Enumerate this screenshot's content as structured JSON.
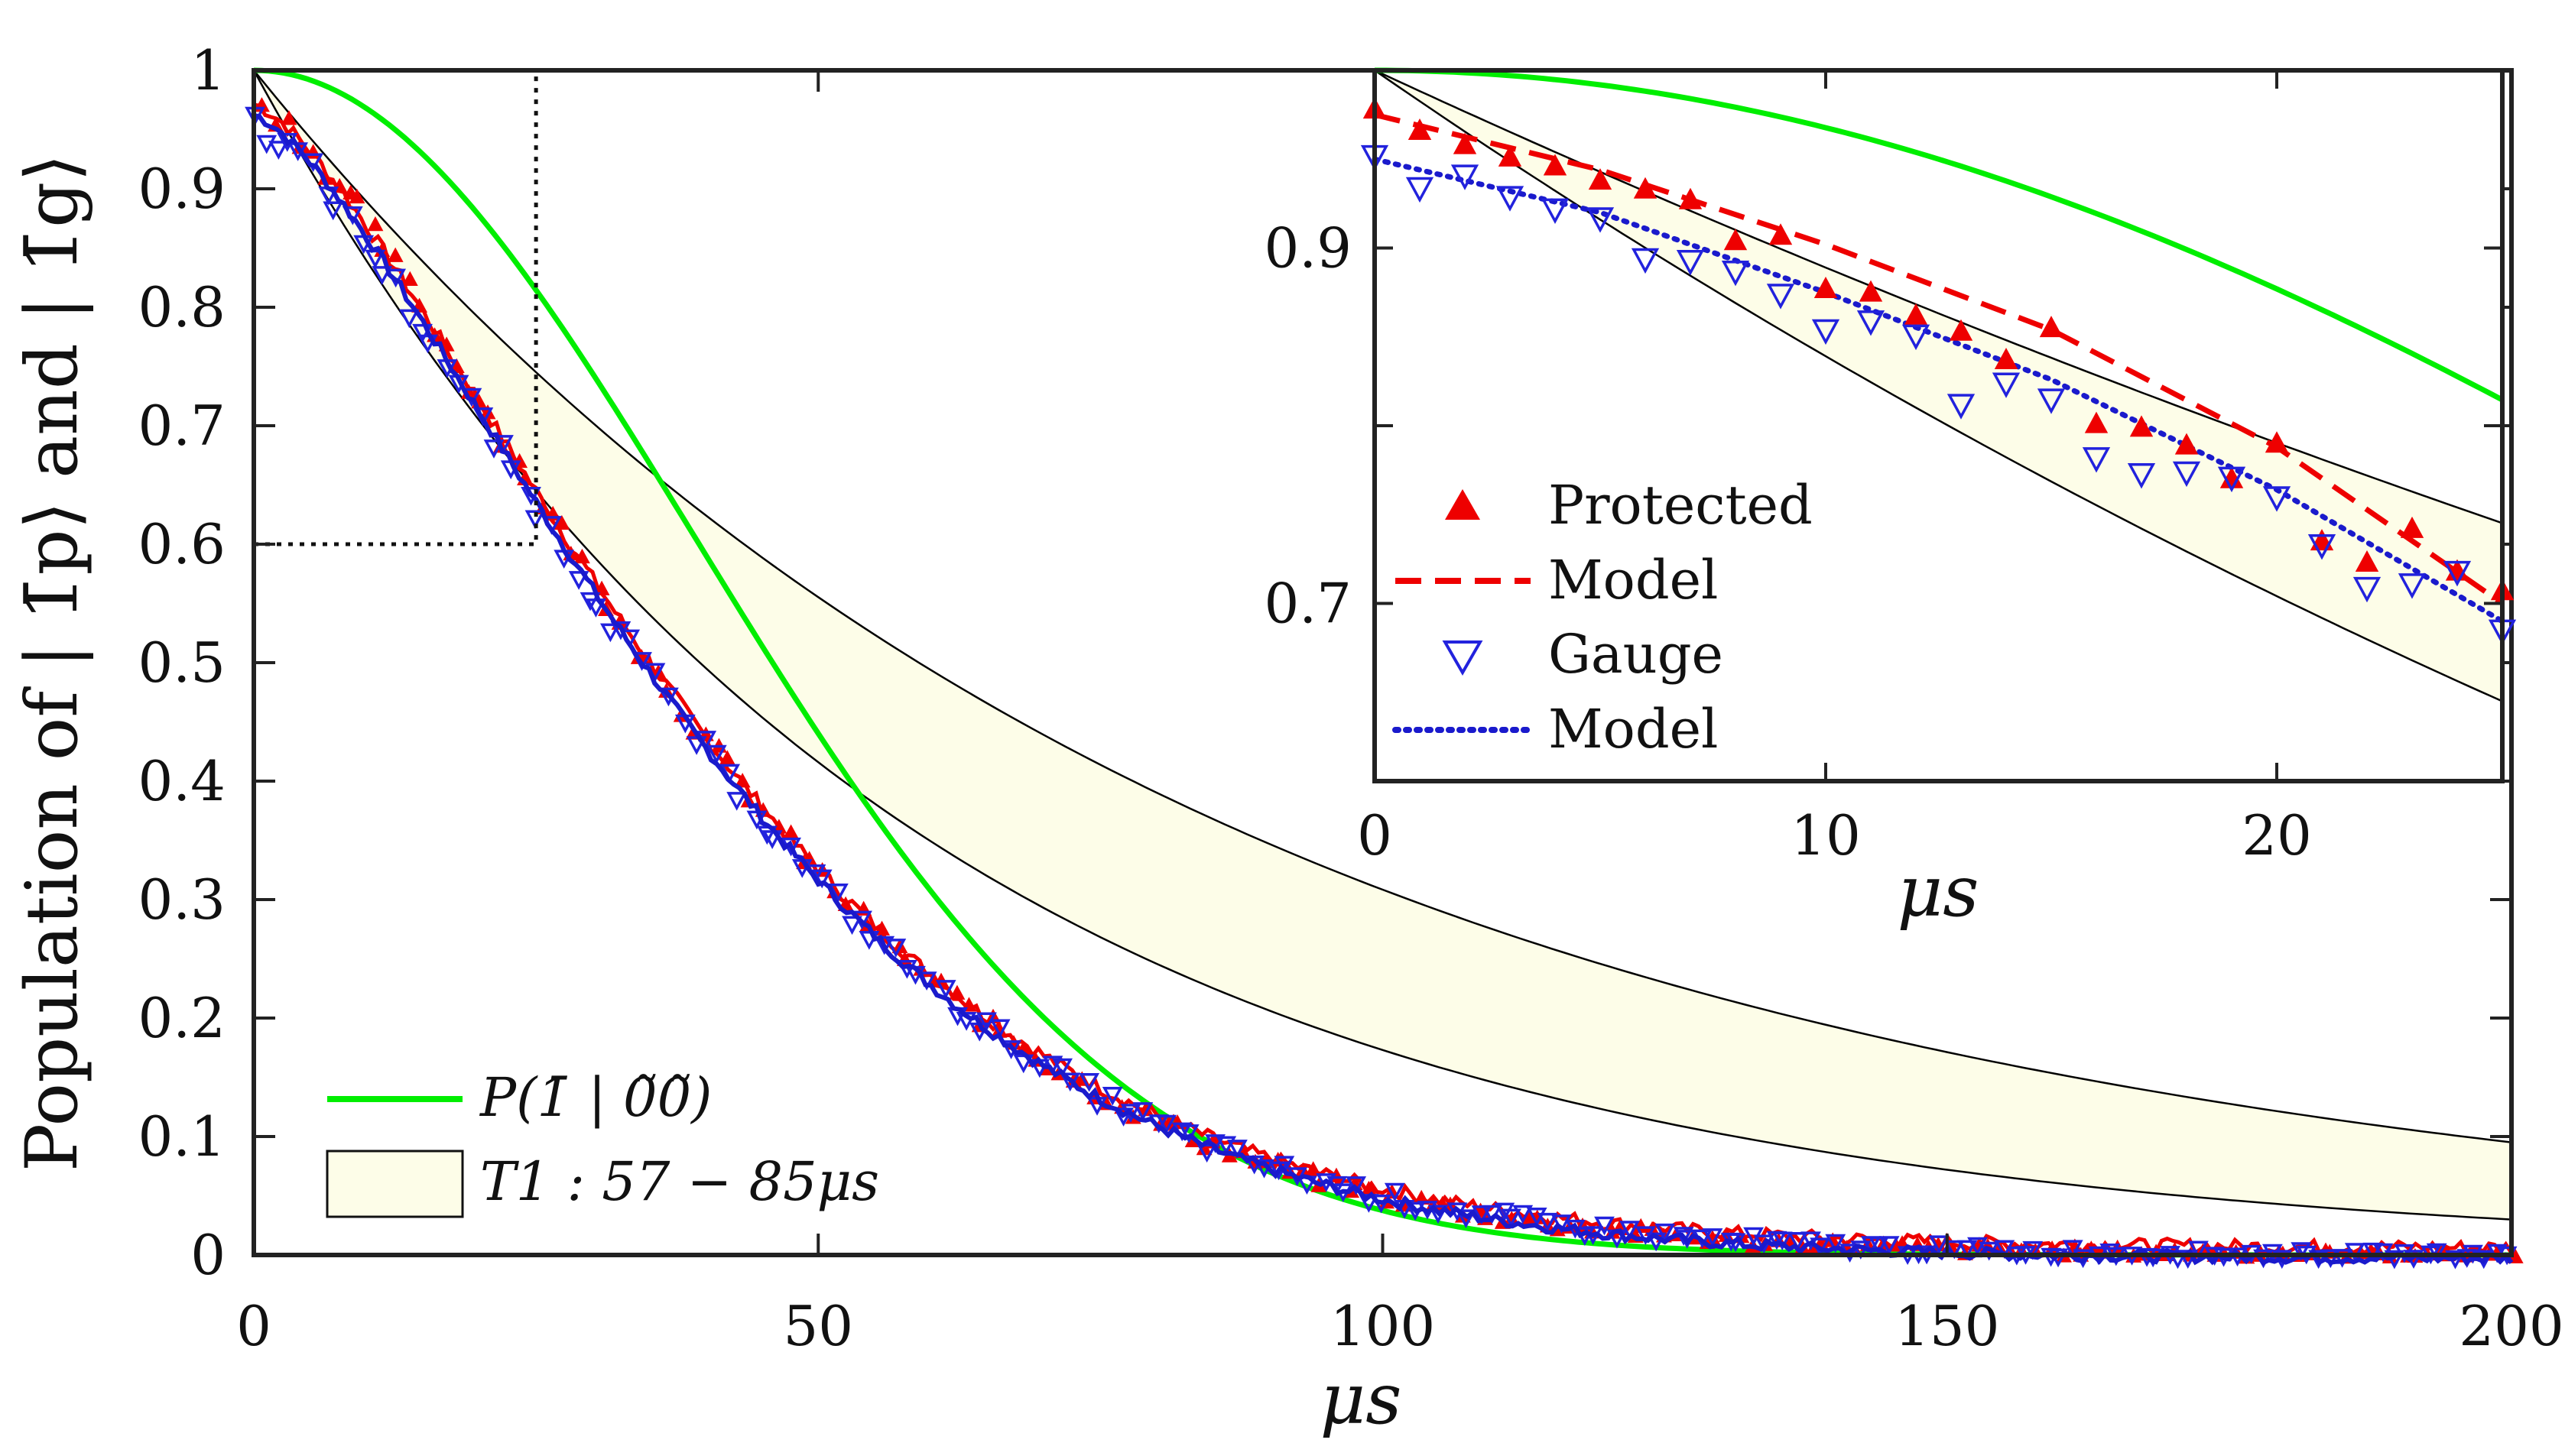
{
  "chart_data": [
    {
      "type": "line",
      "id": "main",
      "ylabel": "Population of | 1̄p⟩ and | 1̄g⟩",
      "xlabel": "μs",
      "xlim": [
        0,
        200
      ],
      "ylim": [
        0,
        1
      ],
      "xticks": [
        0,
        50,
        100,
        150,
        200
      ],
      "xtick_labels": [
        "0",
        "50",
        "100",
        "150",
        "200"
      ],
      "yticks": [
        0,
        0.1,
        0.2,
        0.3,
        0.4,
        0.5,
        0.6,
        0.7,
        0.8,
        0.9,
        1
      ],
      "ytick_labels": [
        "0",
        "0.1",
        "0.2",
        "0.3",
        "0.4",
        "0.5",
        "0.6",
        "0.7",
        "0.8",
        "0.9",
        "1"
      ],
      "zoom_box": {
        "x_max": 25,
        "y_min": 0.6
      },
      "legend": {
        "placement": "bottom-left",
        "entries": [
          {
            "name": "green-curve",
            "label": "P(1̄ | 0̃0̃)"
          },
          {
            "name": "t1-band",
            "label": "T1 : 57 − 85μs"
          }
        ]
      },
      "series": [
        {
          "name": "P(1 | 00) curve",
          "kind": "curve",
          "formula": "exp(-(t/55.2)^2)",
          "color": "#00ee00"
        },
        {
          "name": "T1 = 57 us bound",
          "kind": "curve",
          "formula": "exp(-t/57)",
          "color": "#000000"
        },
        {
          "name": "T1 = 85 us bound",
          "kind": "curve",
          "formula": "exp(-t/85)",
          "color": "#000000"
        },
        {
          "name": "Protected",
          "kind": "markers",
          "formula": "0.975*exp(-(t/46.6)^1.42)",
          "color": "#ee0000",
          "x_range": [
            0,
            200
          ],
          "approx_points": 190
        },
        {
          "name": "Gauge",
          "kind": "markers",
          "formula": "0.955*exp(-(t/46.6)^1.42)",
          "color": "#2222dd",
          "x_range": [
            0,
            200
          ],
          "approx_points": 190
        },
        {
          "name": "Model (blue)",
          "kind": "curve",
          "formula": "0.965*exp(-(t/46.6)^1.42)",
          "color": "#1a1acc"
        }
      ],
      "band": {
        "name": "T1 : 57 - 85us",
        "fill": "#fdfde8",
        "lower_T1": 57,
        "upper_T1": 85
      },
      "colors": {
        "green": "#00ee00",
        "red": "#ee0000",
        "blue": "#2222dd",
        "band": "#fdfde8"
      }
    },
    {
      "type": "line",
      "id": "inset",
      "xlabel": "μs",
      "xlim": [
        0,
        25
      ],
      "ylim": [
        0.6,
        1.0
      ],
      "xticks": [
        0,
        10,
        20
      ],
      "xtick_labels": [
        "0",
        "10",
        "20"
      ],
      "yticks": [
        0.7,
        0.9
      ],
      "ytick_labels": [
        "0.7",
        "0.9"
      ],
      "legend": {
        "placement": "center-left",
        "entries": [
          {
            "name": "protected",
            "label": "Protected"
          },
          {
            "name": "model-red",
            "label": "Model"
          },
          {
            "name": "gauge",
            "label": "Gauge"
          },
          {
            "name": "model-blue",
            "label": "Model"
          }
        ]
      },
      "series": [
        {
          "name": "Protected",
          "kind": "markers",
          "x": [
            0,
            1,
            2,
            3,
            4,
            5,
            6,
            7,
            8,
            9,
            10,
            11,
            12,
            13,
            14,
            15,
            16,
            17,
            18,
            19,
            20,
            21,
            22,
            23,
            24,
            25
          ],
          "y": [
            0.978,
            0.966,
            0.958,
            0.951,
            0.946,
            0.938,
            0.933,
            0.927,
            0.904,
            0.907,
            0.877,
            0.875,
            0.862,
            0.853,
            0.837,
            0.855,
            0.801,
            0.799,
            0.789,
            0.77,
            0.79,
            0.735,
            0.723,
            0.742,
            0.718,
            0.707
          ]
        },
        {
          "name": "Model (red)",
          "kind": "curve",
          "x": [
            0,
            5,
            10,
            15,
            20,
            25
          ],
          "y": [
            0.975,
            0.944,
            0.902,
            0.854,
            0.788,
            0.7
          ]
        },
        {
          "name": "Gauge",
          "kind": "markers",
          "x": [
            0,
            1,
            2,
            3,
            4,
            5,
            6,
            7,
            8,
            9,
            10,
            11,
            12,
            13,
            14,
            15,
            16,
            17,
            18,
            19,
            20,
            21,
            22,
            23,
            24,
            25
          ],
          "y": [
            0.952,
            0.934,
            0.941,
            0.929,
            0.922,
            0.917,
            0.894,
            0.893,
            0.887,
            0.874,
            0.854,
            0.859,
            0.851,
            0.812,
            0.824,
            0.815,
            0.782,
            0.773,
            0.774,
            0.771,
            0.76,
            0.733,
            0.709,
            0.711,
            0.718,
            0.685
          ]
        },
        {
          "name": "Model (blue)",
          "kind": "curve",
          "x": [
            0,
            5,
            10,
            15,
            20,
            25
          ],
          "y": [
            0.95,
            0.92,
            0.875,
            0.826,
            0.764,
            0.69
          ]
        },
        {
          "name": "P(1 | 00) curve",
          "kind": "curve",
          "formula": "exp(-(t/55.2)^2)"
        },
        {
          "name": "T1 = 57 us bound",
          "kind": "curve",
          "formula": "exp(-t/57)"
        },
        {
          "name": "T1 = 85 us bound",
          "kind": "curve",
          "formula": "exp(-t/85)"
        }
      ]
    }
  ]
}
